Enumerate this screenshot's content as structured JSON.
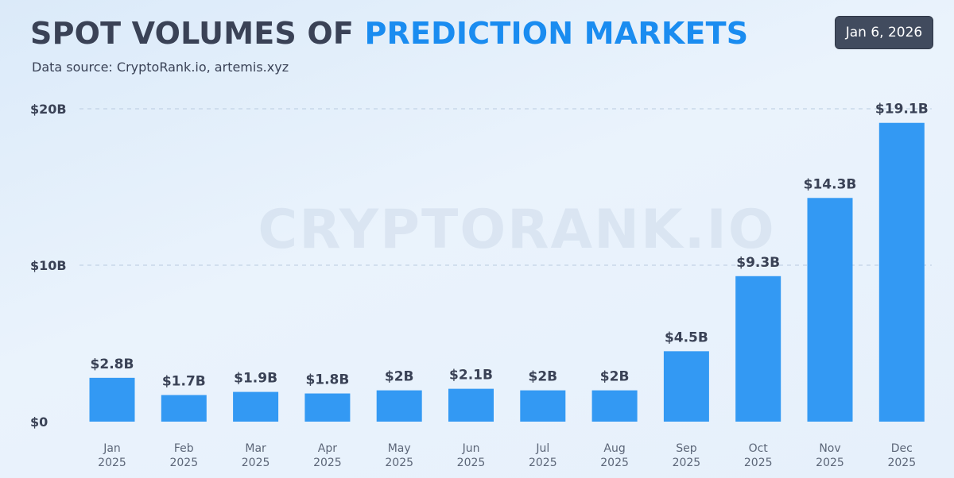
{
  "header": {
    "title_part1": "SPOT VOLUMES OF ",
    "title_part2": "PREDICTION MARKETS",
    "subtitle": "Data source: CryptoRank.io, artemis.xyz",
    "date": "Jan 6, 2026"
  },
  "watermark": "CRYPTORANK.IO",
  "colors": {
    "bar": "#3399f3",
    "accent": "#1a8cf0",
    "text": "#3a4256",
    "badge_bg": "#414b5e"
  },
  "chart_data": {
    "type": "bar",
    "title": "SPOT VOLUMES OF PREDICTION MARKETS",
    "ylabel": "",
    "xlabel": "",
    "ylim": [
      0,
      20
    ],
    "unit": "billion USD",
    "yticks": [
      {
        "value": 0,
        "label": "$0"
      },
      {
        "value": 10,
        "label": "$10B"
      },
      {
        "value": 20,
        "label": "$20B"
      }
    ],
    "grid": true,
    "categories": [
      {
        "month": "Jan",
        "year": "2025"
      },
      {
        "month": "Feb",
        "year": "2025"
      },
      {
        "month": "Mar",
        "year": "2025"
      },
      {
        "month": "Apr",
        "year": "2025"
      },
      {
        "month": "May",
        "year": "2025"
      },
      {
        "month": "Jun",
        "year": "2025"
      },
      {
        "month": "Jul",
        "year": "2025"
      },
      {
        "month": "Aug",
        "year": "2025"
      },
      {
        "month": "Sep",
        "year": "2025"
      },
      {
        "month": "Oct",
        "year": "2025"
      },
      {
        "month": "Nov",
        "year": "2025"
      },
      {
        "month": "Dec",
        "year": "2025"
      }
    ],
    "values": [
      2.8,
      1.7,
      1.9,
      1.8,
      2.0,
      2.1,
      2.0,
      2.0,
      4.5,
      9.3,
      14.3,
      19.1
    ],
    "value_labels": [
      "$2.8B",
      "$1.7B",
      "$1.9B",
      "$1.8B",
      "$2B",
      "$2.1B",
      "$2B",
      "$2B",
      "$4.5B",
      "$9.3B",
      "$14.3B",
      "$19.1B"
    ]
  }
}
